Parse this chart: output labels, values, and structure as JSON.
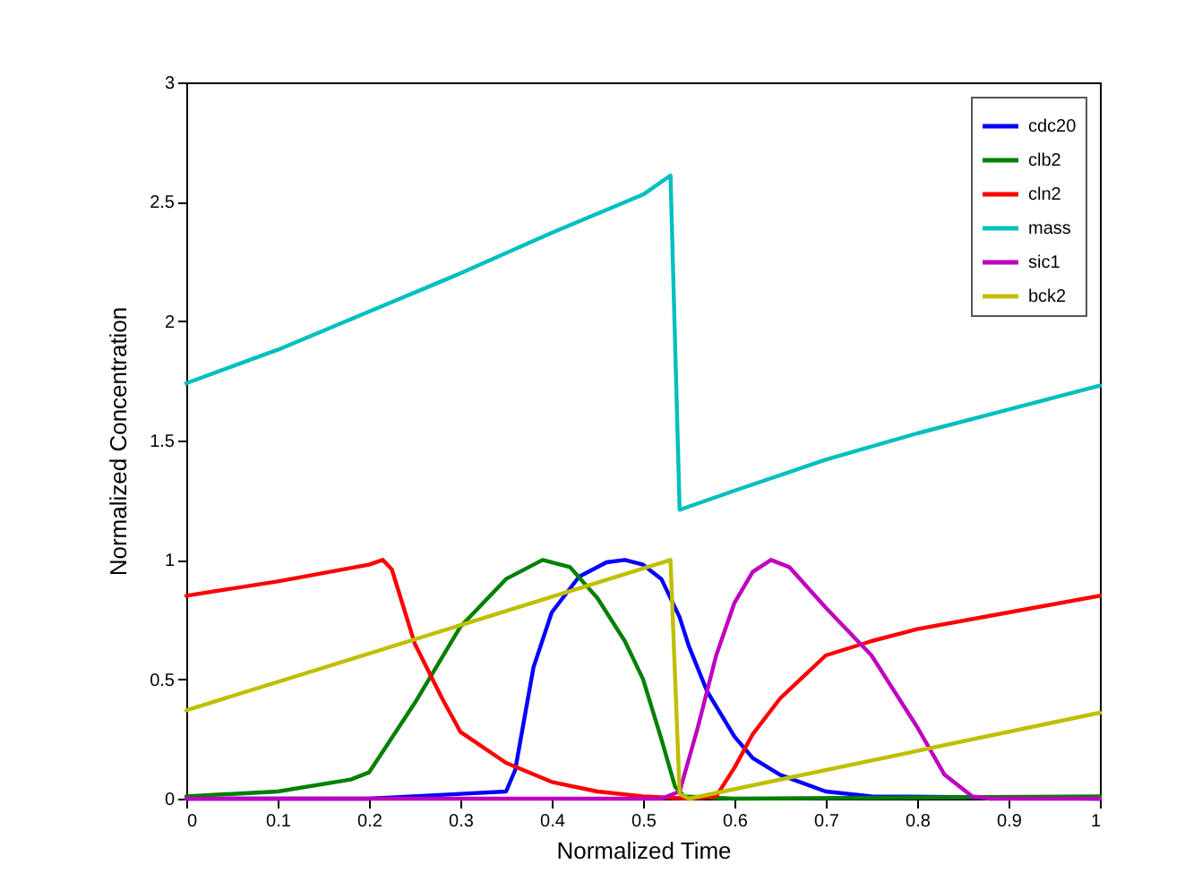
{
  "chart_data": {
    "type": "line",
    "xlabel": "Normalized Time",
    "ylabel": "Normalized Concentration",
    "xlim": [
      0,
      1
    ],
    "ylim": [
      0,
      3
    ],
    "xticks": [
      0,
      0.1,
      0.2,
      0.3,
      0.4,
      0.5,
      0.6,
      0.7,
      0.8,
      0.9,
      1
    ],
    "yticks": [
      0,
      0.5,
      1,
      1.5,
      2,
      2.5,
      3
    ],
    "grid": false,
    "legend": "top right",
    "line_style": "solid",
    "marker": "none",
    "series": [
      {
        "name": "cdc20",
        "color": "#0000ff",
        "x": [
          0,
          0.2,
          0.3,
          0.35,
          0.36,
          0.38,
          0.4,
          0.43,
          0.46,
          0.48,
          0.5,
          0.52,
          0.54,
          0.55,
          0.57,
          0.6,
          0.62,
          0.65,
          0.7,
          0.75,
          1
        ],
        "values": [
          0,
          0,
          0.02,
          0.03,
          0.12,
          0.55,
          0.78,
          0.93,
          0.99,
          1,
          0.98,
          0.92,
          0.76,
          0.64,
          0.45,
          0.26,
          0.17,
          0.1,
          0.03,
          0.01,
          0
        ]
      },
      {
        "name": "clb2",
        "color": "#008000",
        "x": [
          0,
          0.1,
          0.18,
          0.2,
          0.25,
          0.3,
          0.35,
          0.39,
          0.42,
          0.45,
          0.48,
          0.5,
          0.52,
          0.535,
          0.545,
          0.6,
          1
        ],
        "values": [
          0.01,
          0.03,
          0.08,
          0.11,
          0.4,
          0.72,
          0.92,
          1,
          0.97,
          0.84,
          0.66,
          0.5,
          0.25,
          0.05,
          0.01,
          0,
          0.01
        ]
      },
      {
        "name": "cln2",
        "color": "#ff0000",
        "x": [
          0,
          0.1,
          0.2,
          0.215,
          0.225,
          0.25,
          0.28,
          0.3,
          0.35,
          0.4,
          0.45,
          0.5,
          0.55,
          0.58,
          0.6,
          0.62,
          0.65,
          0.7,
          0.75,
          0.8,
          0.9,
          1
        ],
        "values": [
          0.85,
          0.91,
          0.98,
          1,
          0.96,
          0.65,
          0.42,
          0.28,
          0.15,
          0.07,
          0.03,
          0.01,
          0,
          0.01,
          0.13,
          0.27,
          0.42,
          0.6,
          0.66,
          0.71,
          0.78,
          0.85
        ]
      },
      {
        "name": "mass",
        "color": "#00bfbf",
        "x": [
          0,
          0.1,
          0.2,
          0.3,
          0.4,
          0.5,
          0.53,
          0.54,
          0.6,
          0.7,
          0.8,
          0.9,
          1
        ],
        "values": [
          1.74,
          1.88,
          2.04,
          2.2,
          2.37,
          2.53,
          2.61,
          1.21,
          1.29,
          1.42,
          1.53,
          1.63,
          1.73
        ]
      },
      {
        "name": "sic1",
        "color": "#bf00bf",
        "x": [
          0,
          0.52,
          0.54,
          0.56,
          0.58,
          0.6,
          0.62,
          0.64,
          0.66,
          0.7,
          0.75,
          0.8,
          0.83,
          0.86,
          0.88,
          1
        ],
        "values": [
          0,
          0,
          0.03,
          0.3,
          0.6,
          0.82,
          0.95,
          1,
          0.97,
          0.8,
          0.6,
          0.3,
          0.1,
          0.01,
          0,
          0
        ]
      },
      {
        "name": "bck2",
        "color": "#bfbf00",
        "x": [
          0,
          0.53,
          0.54,
          0.55,
          1
        ],
        "values": [
          0.37,
          1,
          0.02,
          0,
          0.36
        ]
      }
    ]
  }
}
